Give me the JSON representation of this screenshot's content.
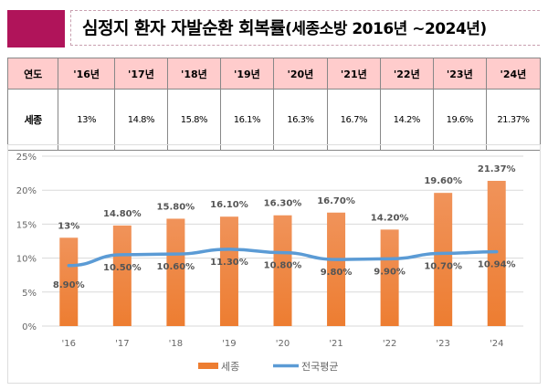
{
  "title": {
    "main": "심정지 환자 자발순환 회복률",
    "sub": "(세종소방 2016년 ~2024년)"
  },
  "colors": {
    "banner": "#b0145a",
    "header_fill": "#ffcccc",
    "bar": "#ed7d31",
    "line": "#5b9bd5"
  },
  "table": {
    "headers": [
      "연도",
      "'16년",
      "'17년",
      "'18년",
      "'19년",
      "'20년",
      "'21년",
      "'22년",
      "'23년",
      "'24년"
    ],
    "row": [
      "세종",
      "13%",
      "14.8%",
      "15.8%",
      "16.1%",
      "16.3%",
      "16.7%",
      "14.2%",
      "19.6%",
      "21.37%"
    ]
  },
  "chart_data": {
    "type": "bar",
    "categories": [
      "'16",
      "'17",
      "'18",
      "'19",
      "'20",
      "'21",
      "'22",
      "'23",
      "'24"
    ],
    "ylim": [
      0,
      25
    ],
    "yticks": [
      "0%",
      "5%",
      "10%",
      "15%",
      "20%",
      "25%"
    ],
    "grid": true,
    "legend_position": "bottom",
    "series": [
      {
        "name": "세종",
        "type": "bar",
        "values": [
          13,
          14.8,
          15.8,
          16.1,
          16.3,
          16.7,
          14.2,
          19.6,
          21.37
        ],
        "labels": [
          "13%",
          "14.80%",
          "15.80%",
          "16.10%",
          "16.30%",
          "16.70%",
          "14.20%",
          "19.60%",
          "21.37%"
        ]
      },
      {
        "name": "전국평균",
        "type": "line",
        "values": [
          8.9,
          10.5,
          10.6,
          11.3,
          10.8,
          9.8,
          9.9,
          10.7,
          10.94
        ],
        "labels": [
          "8.90%",
          "10.50%",
          "10.60%",
          "11.30%",
          "10.80%",
          "9.80%",
          "9.90%",
          "10.70%",
          "10.94%"
        ]
      }
    ]
  }
}
